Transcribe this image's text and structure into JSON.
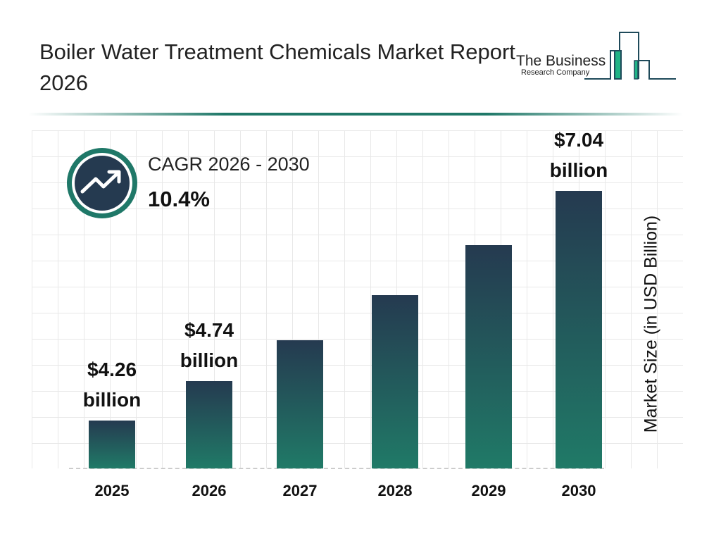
{
  "header": {
    "title": "Boiler Water Treatment Chemicals Market Report 2026",
    "logo_text_line1": "The Business",
    "logo_text_line2": "Research Company"
  },
  "cagr": {
    "label": "CAGR 2026 - 2030",
    "value": "10.4%",
    "icon": "trending-up-icon"
  },
  "colors": {
    "bar_top": "#253a50",
    "bar_bottom": "#207a67",
    "accent": "#1f7868"
  },
  "chart_data": {
    "type": "bar",
    "categories": [
      "2025",
      "2026",
      "2027",
      "2028",
      "2029",
      "2030"
    ],
    "values": [
      4.26,
      4.74,
      5.23,
      5.78,
      6.38,
      7.04
    ],
    "data_labels": [
      {
        "category": "2025",
        "amount": "$4.26",
        "unit": "billion"
      },
      {
        "category": "2026",
        "amount": "$4.74",
        "unit": "billion"
      },
      {
        "category": "2030",
        "amount": "$7.04",
        "unit": "billion"
      }
    ],
    "ylabel": "Market Size (in USD Billion)",
    "grid": true
  }
}
